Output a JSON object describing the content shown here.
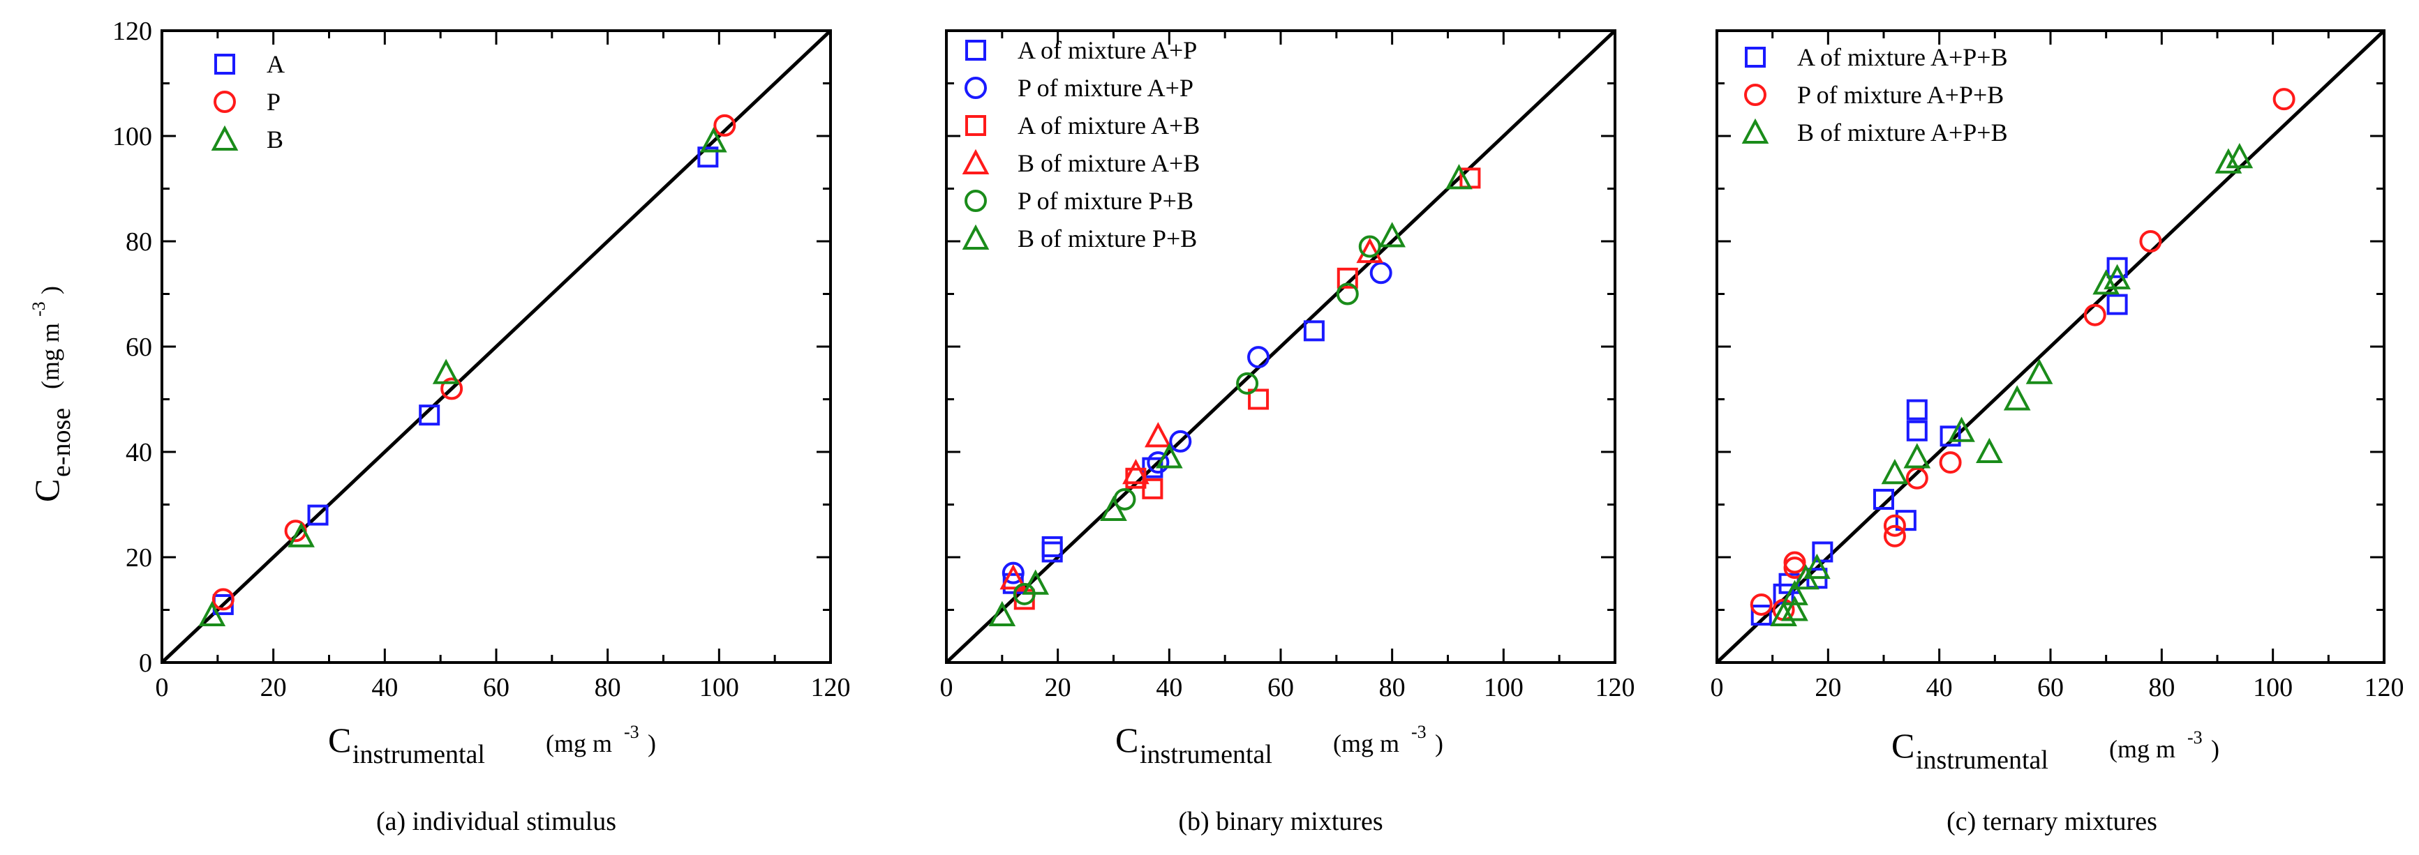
{
  "chart_data": [
    {
      "type": "scatter",
      "caption": "(a) individual stimulus",
      "xlabel_main": "C",
      "xlabel_sub": "instrumental",
      "xlabel_unit": "(mg m",
      "xlabel_exp": "-3",
      "xlabel_close": ")",
      "ylabel_main": "C",
      "ylabel_sub": "e-nose",
      "ylabel_unit": "(mg m",
      "ylabel_exp": "-3",
      "ylabel_close": ")",
      "xlim": [
        0,
        120
      ],
      "ylim": [
        0,
        120
      ],
      "xticks": [
        "0",
        "20",
        "40",
        "60",
        "80",
        "100",
        "120"
      ],
      "yticks": [
        "0",
        "20",
        "40",
        "60",
        "80",
        "100",
        "120"
      ],
      "show_y_tick_labels": true,
      "legend_position": "top-left",
      "diagonal": true,
      "series": [
        {
          "name": "A",
          "marker": "square",
          "color": "#1a1aff",
          "points": [
            [
              11,
              11
            ],
            [
              28,
              28
            ],
            [
              48,
              47
            ],
            [
              98,
              96
            ]
          ]
        },
        {
          "name": "P",
          "marker": "circle",
          "color": "#ff1a1a",
          "points": [
            [
              11,
              12
            ],
            [
              24,
              25
            ],
            [
              52,
              52
            ],
            [
              101,
              102
            ]
          ]
        },
        {
          "name": "B",
          "marker": "triangle",
          "color": "#1a8c1a",
          "points": [
            [
              9,
              9
            ],
            [
              25,
              24
            ],
            [
              51,
              55
            ],
            [
              99,
              99
            ]
          ]
        }
      ]
    },
    {
      "type": "scatter",
      "caption": "(b) binary mixtures",
      "xlabel_main": "C",
      "xlabel_sub": "instrumental",
      "xlabel_unit": "(mg m",
      "xlabel_exp": "-3",
      "xlabel_close": ")",
      "xlim": [
        0,
        120
      ],
      "ylim": [
        0,
        120
      ],
      "xticks": [
        "0",
        "20",
        "40",
        "60",
        "80",
        "100",
        "120"
      ],
      "yticks": [
        "0",
        "20",
        "40",
        "60",
        "80",
        "100",
        "120"
      ],
      "show_y_tick_labels": false,
      "legend_position": "top-left",
      "diagonal": true,
      "series": [
        {
          "name": "A of mixture A+P",
          "marker": "square",
          "color": "#1a1aff",
          "points": [
            [
              12,
              15
            ],
            [
              19,
              22
            ],
            [
              19,
              21
            ],
            [
              37,
              37
            ],
            [
              66,
              63
            ]
          ]
        },
        {
          "name": "P of mixture A+P",
          "marker": "circle",
          "color": "#1a1aff",
          "points": [
            [
              12,
              17
            ],
            [
              38,
              38
            ],
            [
              42,
              42
            ],
            [
              56,
              58
            ],
            [
              78,
              74
            ]
          ]
        },
        {
          "name": "A of mixture A+B",
          "marker": "square",
          "color": "#ff1a1a",
          "points": [
            [
              14,
              12
            ],
            [
              34,
              35
            ],
            [
              37,
              33
            ],
            [
              56,
              50
            ],
            [
              72,
              73
            ],
            [
              94,
              92
            ]
          ]
        },
        {
          "name": "B of mixture A+B",
          "marker": "triangle",
          "color": "#ff1a1a",
          "points": [
            [
              12,
              16
            ],
            [
              34,
              36
            ],
            [
              38,
              43
            ],
            [
              76,
              78
            ]
          ]
        },
        {
          "name": "P of mixture P+B",
          "marker": "circle",
          "color": "#1a8c1a",
          "points": [
            [
              14,
              13
            ],
            [
              32,
              31
            ],
            [
              54,
              53
            ],
            [
              72,
              70
            ],
            [
              76,
              79
            ]
          ]
        },
        {
          "name": "B of mixture P+B",
          "marker": "triangle",
          "color": "#1a8c1a",
          "points": [
            [
              10,
              9
            ],
            [
              16,
              15
            ],
            [
              30,
              29
            ],
            [
              40,
              39
            ],
            [
              80,
              81
            ],
            [
              92,
              92
            ]
          ]
        }
      ]
    },
    {
      "type": "scatter",
      "caption": "(c) ternary mixtures",
      "xlabel_main": "C",
      "xlabel_sub": "instrumental",
      "xlabel_unit": "(mg m",
      "xlabel_exp": "-3",
      "xlabel_close": ")",
      "xlim": [
        0,
        120
      ],
      "ylim": [
        0,
        120
      ],
      "xticks": [
        "0",
        "20",
        "40",
        "60",
        "80",
        "100",
        "120"
      ],
      "yticks": [
        "0",
        "20",
        "40",
        "60",
        "80",
        "100",
        "120"
      ],
      "show_y_tick_labels": false,
      "legend_position": "top-left",
      "diagonal": true,
      "series": [
        {
          "name": "A of mixture A+P+B",
          "marker": "square",
          "color": "#1a1aff",
          "points": [
            [
              8,
              9
            ],
            [
              12,
              13
            ],
            [
              13,
              15
            ],
            [
              18,
              16
            ],
            [
              19,
              21
            ],
            [
              30,
              31
            ],
            [
              34,
              27
            ],
            [
              36,
              44
            ],
            [
              36,
              48
            ],
            [
              42,
              43
            ],
            [
              72,
              68
            ],
            [
              72,
              75
            ]
          ]
        },
        {
          "name": "P of mixture A+P+B",
          "marker": "circle",
          "color": "#ff1a1a",
          "points": [
            [
              8,
              11
            ],
            [
              12,
              10
            ],
            [
              14,
              18
            ],
            [
              14,
              19
            ],
            [
              32,
              24
            ],
            [
              32,
              26
            ],
            [
              36,
              35
            ],
            [
              42,
              38
            ],
            [
              68,
              66
            ],
            [
              78,
              80
            ],
            [
              102,
              107
            ]
          ]
        },
        {
          "name": "B of mixture A+P+B",
          "marker": "triangle",
          "color": "#1a8c1a",
          "points": [
            [
              12,
              9
            ],
            [
              14,
              10
            ],
            [
              14,
              13
            ],
            [
              16,
              16
            ],
            [
              18,
              18
            ],
            [
              32,
              36
            ],
            [
              36,
              39
            ],
            [
              44,
              44
            ],
            [
              49,
              40
            ],
            [
              54,
              50
            ],
            [
              58,
              55
            ],
            [
              70,
              72
            ],
            [
              72,
              73
            ],
            [
              92,
              95
            ],
            [
              94,
              96
            ]
          ]
        }
      ]
    }
  ]
}
